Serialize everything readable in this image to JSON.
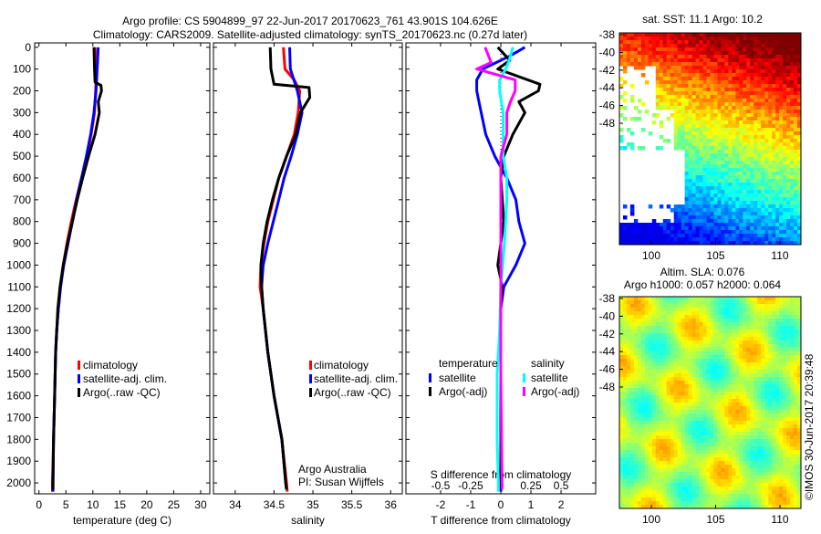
{
  "title": {
    "line1": "Argo profile: CS 5904899_97 22-Jun-2017 20170623_761 43.901S 104.626E",
    "line2": "Climatology: CARS2009. Satellite-adjusted climatology: synTS_20170623.nc (0.27d later)"
  },
  "colors": {
    "climatology": "#ff0000",
    "satellite": "#0000ff",
    "argo": "#000000",
    "s_satellite": "#00ffff",
    "s_argo": "#ff00ff"
  },
  "chart_data": [
    {
      "type": "line",
      "id": "temperature",
      "xlabel": "temperature (deg C)",
      "xlim": [
        -0.8,
        31.7
      ],
      "xticks": [
        0,
        5,
        10,
        15,
        20,
        25,
        30
      ],
      "ylim": [
        -20,
        2050
      ],
      "yticks": [
        0,
        100,
        200,
        300,
        400,
        500,
        600,
        700,
        800,
        900,
        1000,
        1100,
        1200,
        1300,
        1400,
        1500,
        1600,
        1700,
        1800,
        1900,
        2000
      ],
      "legend": [
        "climatology",
        "satellite-adj. clim.",
        "Argo(..raw -QC)"
      ],
      "series": [
        {
          "name": "climatology",
          "color": "#ff0000",
          "depth": [
            0,
            100,
            150,
            200,
            300,
            400,
            500,
            600,
            700,
            800,
            900,
            1000,
            1100,
            1200,
            1300,
            1400,
            1600,
            1800,
            2000,
            2040
          ],
          "values": [
            10.4,
            10.5,
            10.6,
            10.5,
            10.3,
            9.7,
            8.9,
            7.9,
            6.9,
            6.0,
            5.2,
            4.5,
            4.0,
            3.6,
            3.3,
            3.1,
            2.9,
            2.7,
            2.5,
            2.5
          ]
        },
        {
          "name": "satellite-adj. clim.",
          "color": "#0000ff",
          "depth": [
            0,
            100,
            200,
            300,
            400,
            500,
            600,
            700,
            800,
            900,
            1000,
            1100,
            1200,
            1300,
            1400,
            1600,
            1800,
            2000,
            2040
          ],
          "values": [
            11.0,
            10.8,
            10.6,
            10.2,
            9.6,
            8.8,
            7.9,
            7.0,
            6.2,
            5.4,
            4.6,
            4.0,
            3.6,
            3.3,
            3.1,
            2.9,
            2.7,
            2.6,
            2.6
          ]
        },
        {
          "name": "Argo(..raw -QC)",
          "color": "#000000",
          "depth": [
            0,
            100,
            160,
            175,
            200,
            250,
            300,
            400,
            500,
            600,
            700,
            800,
            900,
            1000,
            1100,
            1200,
            1300,
            1400,
            1600,
            1800,
            2000,
            2030
          ],
          "values": [
            10.2,
            10.3,
            10.4,
            11.5,
            11.6,
            11.0,
            11.2,
            10.4,
            9.2,
            8.1,
            7.1,
            6.2,
            5.3,
            4.5,
            3.9,
            3.5,
            3.3,
            3.1,
            2.9,
            2.7,
            2.6,
            2.6
          ]
        }
      ]
    },
    {
      "type": "line",
      "id": "salinity",
      "xlabel": "salinity",
      "xlim": [
        33.72,
        36.15
      ],
      "xticks": [
        34,
        34.5,
        35,
        35.5,
        36
      ],
      "xtick_labels": [
        "34",
        "34.5",
        "35",
        "35.5",
        "36"
      ],
      "ylim": [
        -20,
        2050
      ],
      "legend": [
        "climatology",
        "satellite-adj. clim.",
        "Argo(..raw -QC)"
      ],
      "annotation": [
        "Argo Australia",
        "PI: Susan Wijffels"
      ],
      "series": [
        {
          "name": "climatology",
          "color": "#ff0000",
          "depth": [
            0,
            100,
            150,
            200,
            300,
            400,
            500,
            600,
            700,
            800,
            900,
            1000,
            1100,
            1200,
            1400,
            1600,
            1800,
            2000,
            2040
          ],
          "values": [
            34.62,
            34.64,
            34.76,
            34.83,
            34.81,
            34.76,
            34.66,
            34.56,
            34.49,
            34.42,
            34.37,
            34.33,
            34.32,
            34.36,
            34.42,
            34.5,
            34.6,
            34.66,
            34.67
          ]
        },
        {
          "name": "satellite-adj. clim.",
          "color": "#0000ff",
          "depth": [
            0,
            100,
            200,
            300,
            400,
            500,
            600,
            700,
            800,
            900,
            1000,
            1100,
            1200,
            1400,
            1600,
            1800,
            2000,
            2030
          ],
          "values": [
            34.7,
            34.71,
            34.8,
            34.86,
            34.8,
            34.72,
            34.63,
            34.56,
            34.49,
            34.42,
            34.36,
            34.34,
            34.36,
            34.42,
            34.5,
            34.6,
            34.65,
            34.66
          ]
        },
        {
          "name": "Argo(..raw -QC)",
          "color": "#000000",
          "depth": [
            0,
            100,
            170,
            185,
            230,
            300,
            400,
            500,
            600,
            700,
            800,
            900,
            1000,
            1100,
            1200,
            1400,
            1600,
            1800,
            2000,
            2030
          ],
          "values": [
            34.45,
            34.46,
            34.5,
            34.95,
            34.96,
            34.84,
            34.78,
            34.66,
            34.56,
            34.48,
            34.41,
            34.36,
            34.33,
            34.34,
            34.36,
            34.42,
            34.5,
            34.6,
            34.65,
            34.66
          ]
        }
      ]
    },
    {
      "type": "line",
      "id": "difference",
      "xlabel": "T difference from climatology",
      "x2label": "S difference from climatology",
      "xlim": [
        -3.15,
        3.15
      ],
      "xticks": [
        -2,
        -1,
        0,
        1,
        2
      ],
      "x2ticks": [
        "-0.5",
        "-0.25",
        "0",
        "0.25",
        "0.5"
      ],
      "x2tick_values": [
        -0.5,
        -0.25,
        0,
        0.25,
        0.5
      ],
      "s_scale": 4,
      "ylim": [
        -20,
        2050
      ],
      "legend_temperature": {
        "title": "temperature",
        "items": [
          "satellite",
          "Argo(-adj)"
        ]
      },
      "legend_salinity": {
        "title": "salinity",
        "items": [
          "satellite",
          "Argo(-adj)"
        ]
      },
      "series": [
        {
          "name": "T satellite",
          "color": "#0000ff",
          "kind": "T",
          "depth": [
            0,
            40,
            100,
            150,
            200,
            300,
            400,
            500,
            600,
            700,
            800,
            900,
            1000,
            1100,
            1200,
            1400,
            2000,
            2040
          ],
          "values": [
            0.8,
            0.3,
            -0.6,
            -0.8,
            -0.8,
            -0.65,
            -0.5,
            -0.2,
            0.2,
            0.5,
            0.6,
            0.8,
            0.5,
            0.1,
            0.0,
            0.0,
            0.0,
            0.0
          ]
        },
        {
          "name": "T Argo(-adj)",
          "color": "#000000",
          "kind": "T",
          "depth": [
            0,
            60,
            100,
            170,
            200,
            250,
            300,
            400,
            500,
            600,
            800,
            1000,
            1100,
            1200,
            1500,
            2000,
            2030
          ],
          "values": [
            -0.1,
            0.3,
            -0.1,
            1.3,
            1.25,
            0.6,
            0.8,
            0.4,
            0.1,
            0.0,
            0.1,
            -0.1,
            0.05,
            0.0,
            0.0,
            0.0,
            0.0
          ]
        },
        {
          "name": "S satellite",
          "color": "#00ffff",
          "kind": "S",
          "depth": [
            0,
            60,
            100,
            150,
            200,
            300,
            400,
            500,
            600,
            700,
            900,
            1100,
            1300,
            1500,
            1800,
            2000,
            2040
          ],
          "values": [
            0.1,
            0.07,
            0.04,
            -0.01,
            -0.01,
            0.02,
            0.02,
            0.02,
            0.05,
            0.05,
            0.03,
            0.0,
            -0.01,
            -0.03,
            -0.03,
            -0.02,
            -0.02
          ]
        },
        {
          "name": "S Argo(-adj)",
          "color": "#ff00ff",
          "kind": "S",
          "depth": [
            0,
            70,
            100,
            150,
            200,
            250,
            300,
            400,
            500,
            700,
            1000,
            1500,
            2000,
            2030
          ],
          "values": [
            -0.13,
            -0.08,
            -0.2,
            0.12,
            0.12,
            0.08,
            0.05,
            0.05,
            0.0,
            0.0,
            0.0,
            0.0,
            0.01,
            0.01
          ]
        }
      ]
    }
  ],
  "sst_map": {
    "title": "sat. SST: 11.1 Argo: 10.2",
    "lat_ticks": [
      "-38",
      "-40",
      "-42",
      "-44",
      "-46",
      "-48"
    ],
    "lon_ticks": [
      "100",
      "105",
      "110"
    ]
  },
  "sla_map": {
    "title1": "Altim. SLA: 0.076",
    "title2": "Argo h1000: 0.057 h2000: 0.064",
    "lat_ticks": [
      "-38",
      "-40",
      "-42",
      "-44",
      "-46",
      "-48"
    ],
    "lon_ticks": [
      "100",
      "105",
      "110"
    ]
  },
  "credit": "©IMOS 30-Jun-2017 20:39:48"
}
